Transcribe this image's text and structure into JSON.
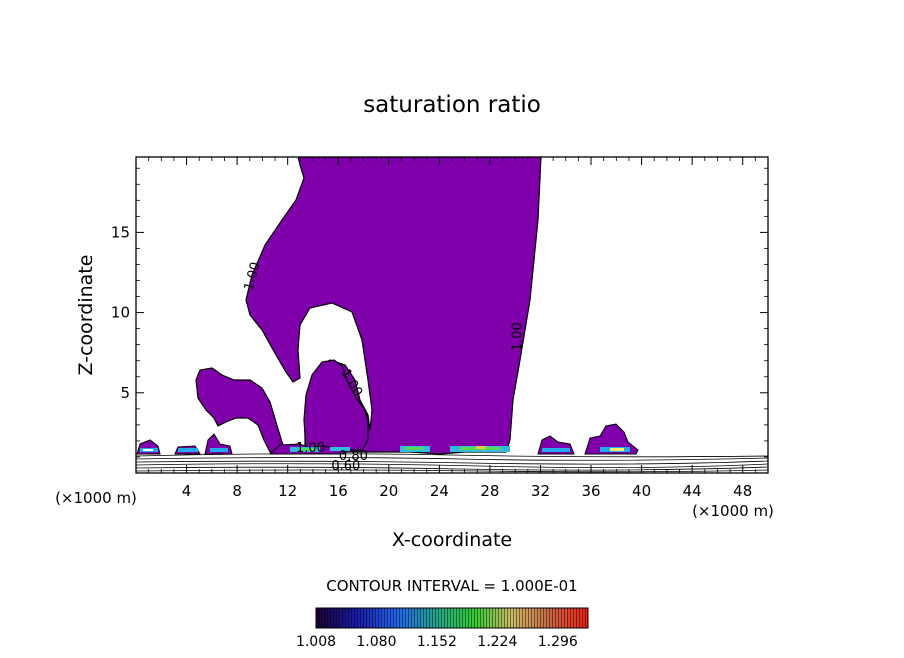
{
  "chart_data": {
    "type": "heatmap",
    "title": "saturation ratio",
    "xlabel": "X-coordinate",
    "ylabel": "Z-coordinate",
    "x_unit": "(×1000 m)",
    "y_unit": "(×1000 m)",
    "xlim": [
      0,
      50
    ],
    "ylim": [
      0,
      19.7
    ],
    "x_ticks": [
      4,
      8,
      12,
      16,
      20,
      24,
      28,
      32,
      36,
      40,
      44,
      48
    ],
    "y_ticks": [
      5,
      10,
      15
    ],
    "contour_interval_label": "CONTOUR INTERVAL = 1.000E-01",
    "colorbar_ticks": [
      "1.008",
      "1.080",
      "1.152",
      "1.224",
      "1.296"
    ],
    "colorbar_range": [
      1.008,
      1.332
    ],
    "contour_labels": [
      {
        "text": "1.00",
        "x": 9.5,
        "z": 12.2
      },
      {
        "text": "1.00",
        "x": 30.5,
        "z": 8.5
      },
      {
        "text": "1.00",
        "x": 16.8,
        "z": 5.5
      },
      {
        "text": "1.00",
        "x": 13.8,
        "z": 1.3
      },
      {
        "text": "0.80",
        "x": 17.2,
        "z": 0.8
      },
      {
        "text": "0.60",
        "x": 16.6,
        "z": 0.2
      }
    ],
    "region_color": "#7f00aa",
    "colors": {
      "supersat_region": "#7f00aa",
      "colorbar_low": "#1a0033",
      "colorbar_mid": "#00cc44",
      "colorbar_high": "#ff2200"
    }
  }
}
